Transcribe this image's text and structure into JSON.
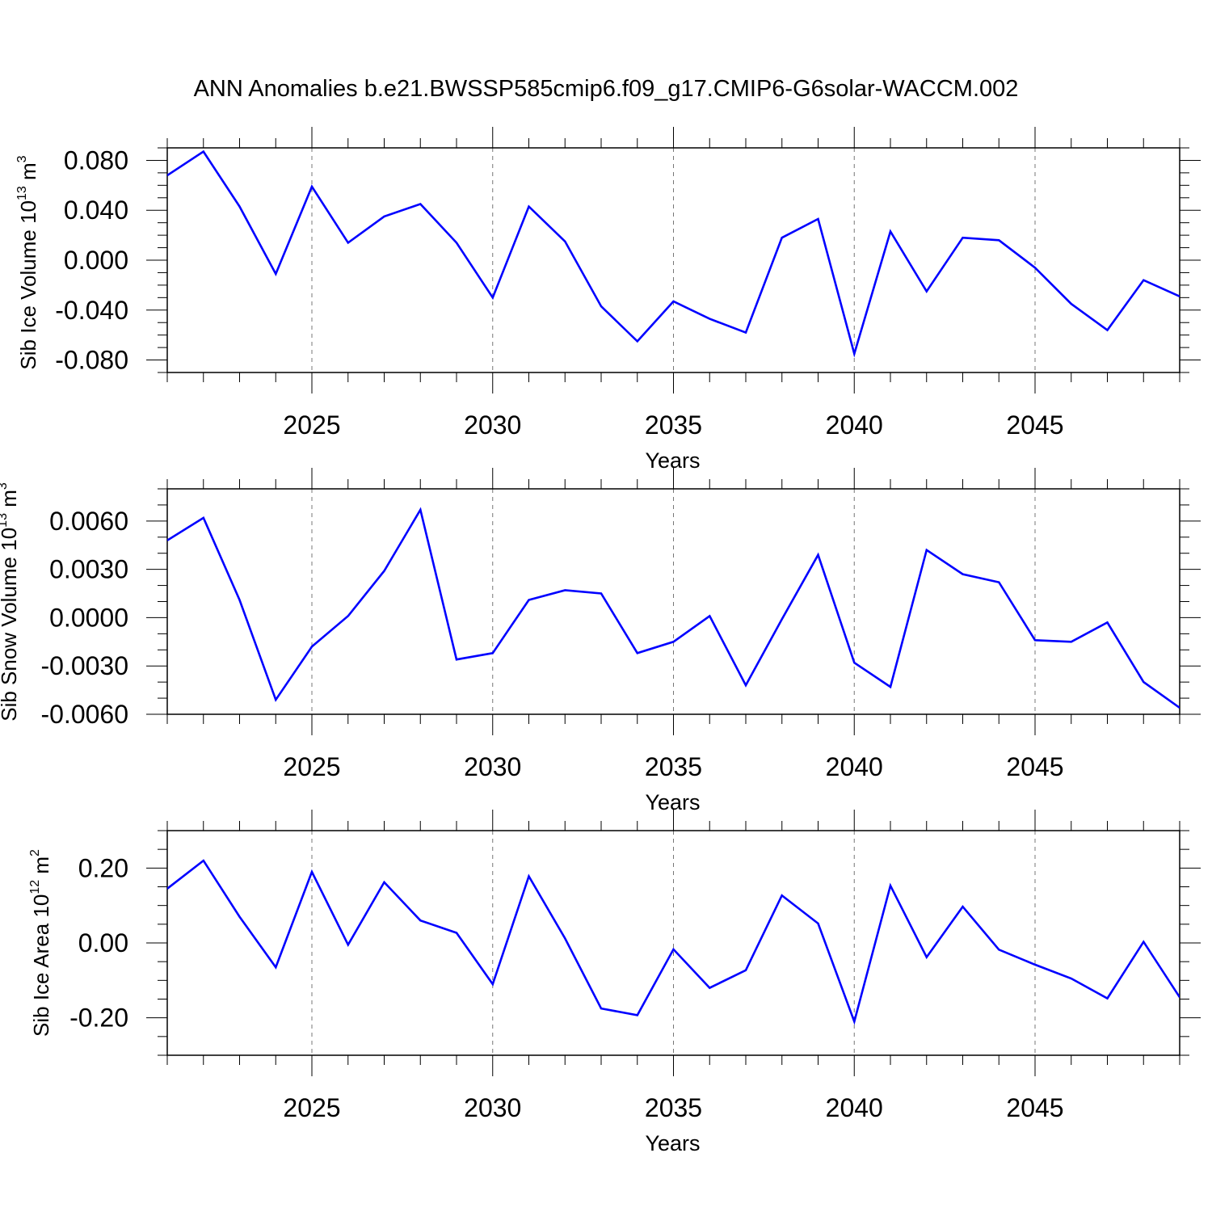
{
  "title": "ANN Anomalies b.e21.BWSSP585cmip6.f09_g17.CMIP6-G6solar-WACCM.002",
  "chart_data": [
    {
      "type": "line",
      "xlabel": "Years",
      "ylabel": {
        "base": "Sib Ice Volume 10",
        "exp1": "13",
        "mid": " m",
        "exp2": "3"
      },
      "xlim": [
        2021,
        2049
      ],
      "ylim": [
        -0.09,
        0.09
      ],
      "x_ticks": [
        2025,
        2030,
        2035,
        2040,
        2045
      ],
      "x_tick_labels": [
        "2025",
        "2030",
        "2035",
        "2040",
        "2045"
      ],
      "y_ticks": [
        0.08,
        0.04,
        0.0,
        -0.04,
        -0.08
      ],
      "y_tick_labels": [
        "0.080",
        "0.040",
        "0.000",
        "-0.040",
        "-0.080"
      ],
      "y_minor_step": 0.01,
      "grid": "vertical dashed at major x ticks",
      "line_color": "#0000ff",
      "x": [
        2021,
        2022,
        2023,
        2024,
        2025,
        2026,
        2027,
        2028,
        2029,
        2030,
        2031,
        2032,
        2033,
        2034,
        2035,
        2036,
        2037,
        2038,
        2039,
        2040,
        2041,
        2042,
        2043,
        2044,
        2045,
        2046,
        2047,
        2048,
        2049
      ],
      "values": [
        0.068,
        0.087,
        0.043,
        -0.011,
        0.059,
        0.014,
        0.035,
        0.045,
        0.014,
        -0.03,
        0.043,
        0.015,
        -0.037,
        -0.065,
        -0.033,
        -0.047,
        -0.058,
        0.018,
        0.033,
        -0.075,
        0.023,
        -0.025,
        0.018,
        0.016,
        -0.006,
        -0.035,
        -0.056,
        -0.016,
        -0.029
      ]
    },
    {
      "type": "line",
      "xlabel": "Years",
      "ylabel": {
        "base": "Sib Snow Volume 10",
        "exp1": "13",
        "mid": " m",
        "exp2": "3"
      },
      "xlim": [
        2021,
        2049
      ],
      "ylim": [
        -0.006,
        0.008
      ],
      "x_ticks": [
        2025,
        2030,
        2035,
        2040,
        2045
      ],
      "x_tick_labels": [
        "2025",
        "2030",
        "2035",
        "2040",
        "2045"
      ],
      "y_ticks": [
        0.006,
        0.003,
        0.0,
        -0.003,
        -0.006
      ],
      "y_tick_labels": [
        "0.0060",
        "0.0030",
        "0.0000",
        "-0.0030",
        "-0.0060"
      ],
      "y_minor_step": 0.001,
      "grid": "vertical dashed at major x ticks",
      "line_color": "#0000ff",
      "x": [
        2021,
        2022,
        2023,
        2024,
        2025,
        2026,
        2027,
        2028,
        2029,
        2030,
        2031,
        2032,
        2033,
        2034,
        2035,
        2036,
        2037,
        2038,
        2039,
        2040,
        2041,
        2042,
        2043,
        2044,
        2045,
        2046,
        2047,
        2048,
        2049
      ],
      "values": [
        0.0048,
        0.0062,
        0.0011,
        -0.0051,
        -0.0018,
        0.0001,
        0.0029,
        0.0067,
        -0.0026,
        -0.0022,
        0.0011,
        0.0017,
        0.0015,
        -0.0022,
        -0.0015,
        0.0001,
        -0.0042,
        -0.0001,
        0.0039,
        -0.0028,
        -0.0043,
        0.0042,
        0.0027,
        0.0022,
        -0.0014,
        -0.0015,
        -0.0003,
        -0.004,
        -0.0056
      ]
    },
    {
      "type": "line",
      "xlabel": "Years",
      "ylabel": {
        "base": "Sib Ice Area 10",
        "exp1": "12",
        "mid": " m",
        "exp2": "2"
      },
      "xlim": [
        2021,
        2049
      ],
      "ylim": [
        -0.3,
        0.3
      ],
      "x_ticks": [
        2025,
        2030,
        2035,
        2040,
        2045
      ],
      "x_tick_labels": [
        "2025",
        "2030",
        "2035",
        "2040",
        "2045"
      ],
      "y_ticks": [
        0.2,
        0.0,
        -0.2
      ],
      "y_tick_labels": [
        "0.20",
        "0.00",
        "-0.20"
      ],
      "y_minor_step": 0.05,
      "grid": "vertical dashed at major x ticks",
      "line_color": "#0000ff",
      "x": [
        2021,
        2022,
        2023,
        2024,
        2025,
        2026,
        2027,
        2028,
        2029,
        2030,
        2031,
        2032,
        2033,
        2034,
        2035,
        2036,
        2037,
        2038,
        2039,
        2040,
        2041,
        2042,
        2043,
        2044,
        2045,
        2046,
        2047,
        2048,
        2049
      ],
      "values": [
        0.145,
        0.22,
        0.07,
        -0.065,
        0.19,
        -0.005,
        0.162,
        0.06,
        0.027,
        -0.11,
        0.178,
        0.012,
        -0.175,
        -0.193,
        -0.017,
        -0.12,
        -0.073,
        0.127,
        0.052,
        -0.21,
        0.153,
        -0.038,
        0.097,
        -0.018,
        -0.058,
        -0.095,
        -0.148,
        0.003,
        -0.145
      ]
    }
  ]
}
